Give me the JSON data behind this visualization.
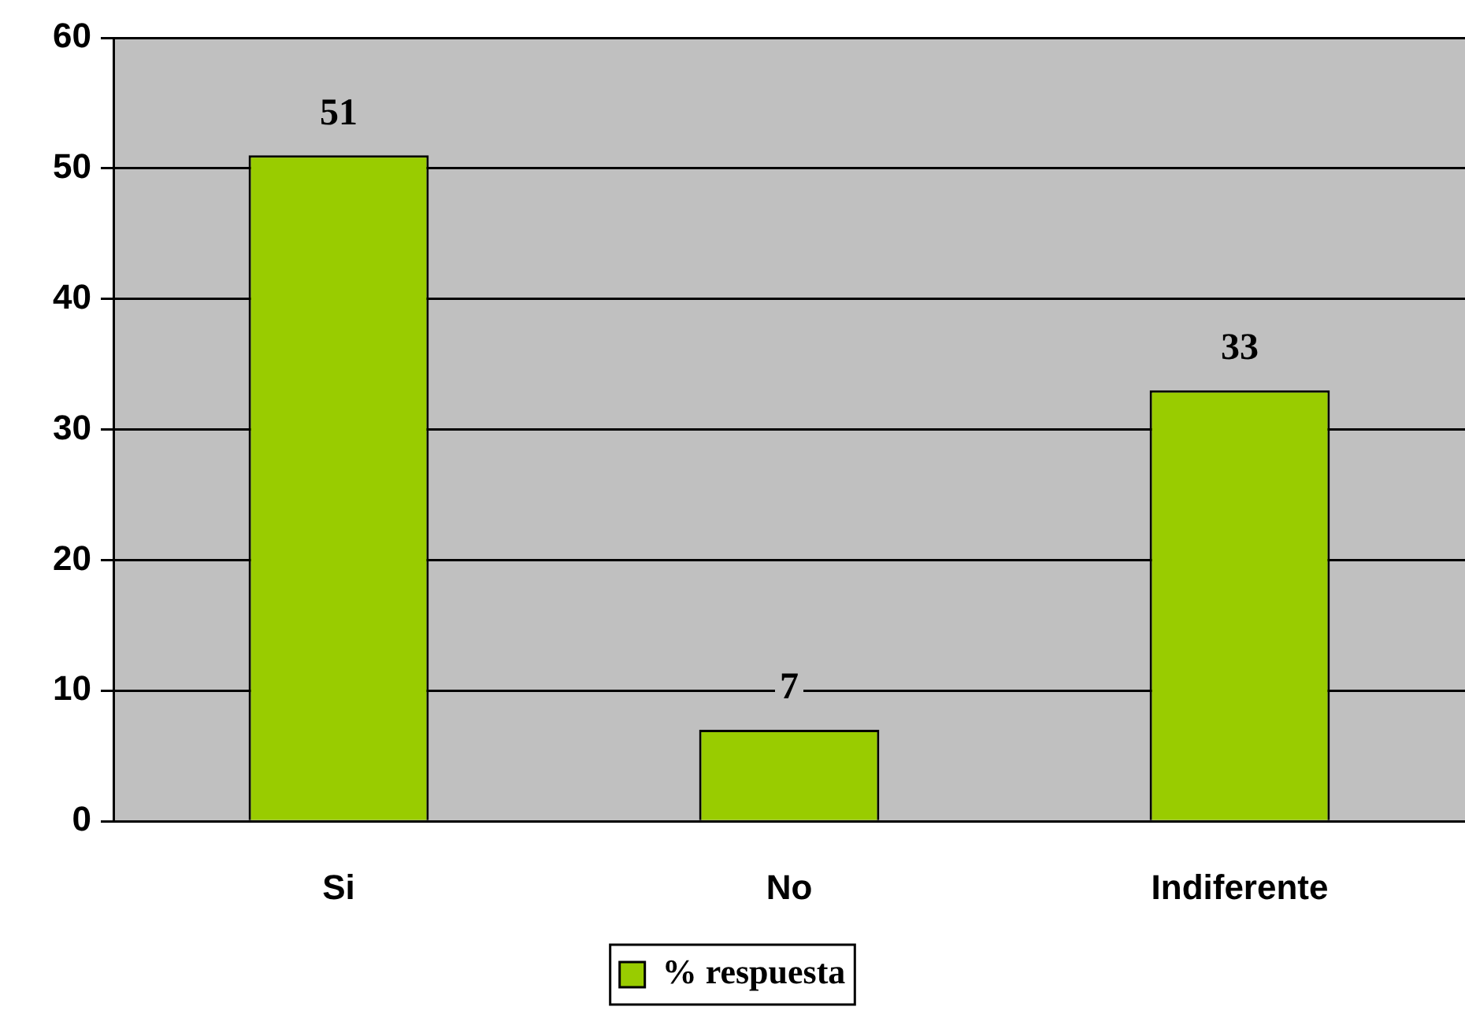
{
  "chart_data": {
    "type": "bar",
    "categories": [
      "Si",
      "No",
      "Indiferente"
    ],
    "series": [
      {
        "name": "% respuesta",
        "color": "#99cc00",
        "values": [
          51,
          7,
          33
        ]
      }
    ],
    "ylim": [
      0,
      60
    ],
    "yticks": [
      0,
      10,
      20,
      30,
      40,
      50,
      60
    ],
    "grid": "y",
    "legend": "bottom",
    "data_labels": true
  }
}
